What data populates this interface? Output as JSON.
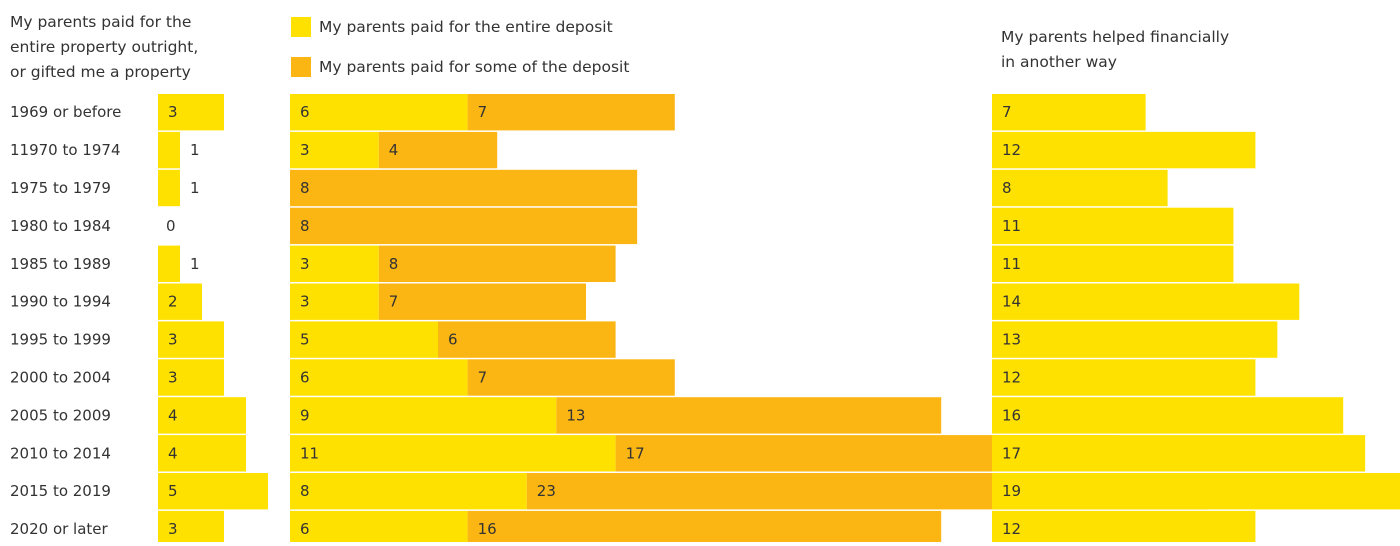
{
  "colors": {
    "entire": "#FFE100",
    "some": "#FBB614",
    "text": "#333333"
  },
  "headers": {
    "outright": [
      "My parents paid for the",
      "entire property outright,",
      "or gifted me a property"
    ],
    "other": [
      "My parents helped financially",
      "in another way"
    ]
  },
  "chart_data": {
    "type": "bar",
    "orientation": "horizontal",
    "categories": [
      "1969 or before",
      "11970 to 1974",
      "1975 to 1979",
      "1980 to 1984",
      "1985 to 1989",
      "1990 to 1994",
      "1995 to 1999",
      "2000 to 2004",
      "2005 to 2009",
      "2010 to 2014",
      "2015 to 2019",
      "2020 or later"
    ],
    "panels": [
      {
        "title": "My parents paid for the entire property outright, or gifted me a property",
        "series": [
          {
            "values": [
              3,
              1,
              1,
              0,
              1,
              2,
              3,
              3,
              4,
              4,
              5,
              3
            ]
          }
        ]
      },
      {
        "stacked": true,
        "series": [
          {
            "name": "My parents paid for the entire deposit",
            "values": [
              6,
              3,
              8,
              8,
              3,
              3,
              5,
              6,
              9,
              11,
              8,
              6
            ]
          },
          {
            "name": "My parents paid for some of the deposit",
            "values": [
              7,
              4,
              null,
              null,
              8,
              7,
              6,
              7,
              13,
              17,
              23,
              16
            ]
          }
        ]
      },
      {
        "title": "My parents helped financially in another way",
        "series": [
          {
            "values": [
              7,
              12,
              8,
              11,
              11,
              14,
              13,
              12,
              16,
              17,
              19,
              12
            ]
          }
        ]
      }
    ],
    "legend": [
      {
        "label": "My parents paid for the entire deposit",
        "color": "#FFE100"
      },
      {
        "label": "My parents paid for some of the deposit",
        "color": "#FBB614"
      }
    ],
    "legend_position": "top-center"
  }
}
